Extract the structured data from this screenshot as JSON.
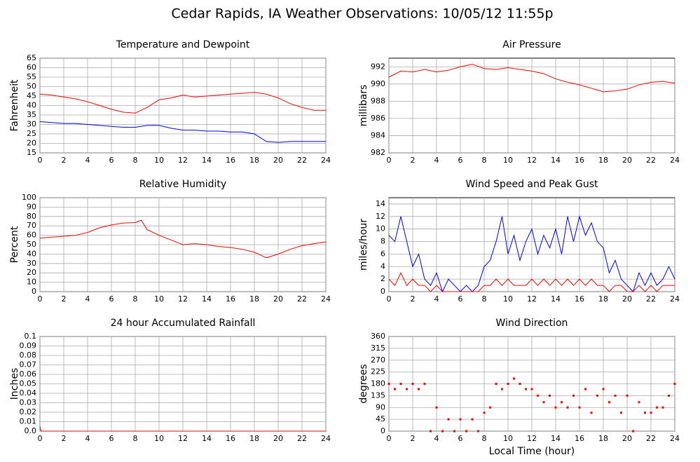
{
  "title": "Cedar Rapids, IA Weather Observations: 10/05/12 11:55p",
  "chart_data": [
    {
      "type": "line",
      "title": "Temperature and Dewpoint",
      "ylabel": "Fahrenheit",
      "grid": true,
      "x": [
        0,
        1,
        2,
        3,
        4,
        5,
        6,
        7,
        8,
        9,
        10,
        11,
        12,
        13,
        14,
        15,
        16,
        17,
        18,
        19,
        20,
        21,
        22,
        23,
        24
      ],
      "xlim": [
        0,
        24
      ],
      "xticks": [
        0,
        2,
        4,
        6,
        8,
        10,
        12,
        14,
        16,
        18,
        20,
        22,
        24
      ],
      "ylim": [
        15,
        65
      ],
      "yticks": [
        15,
        20,
        25,
        30,
        35,
        40,
        45,
        50,
        55,
        60,
        65
      ],
      "series": [
        {
          "color": "#ff0000",
          "values": [
            46,
            45.5,
            44.5,
            43.5,
            42,
            40,
            38,
            36.5,
            36,
            39,
            43,
            44,
            45.5,
            44.5,
            45,
            45.5,
            46,
            46.5,
            47,
            46,
            44,
            41,
            39,
            37.5,
            37.5
          ]
        },
        {
          "color": "#0000ff",
          "values": [
            31.5,
            31,
            30.5,
            30.5,
            30,
            29.5,
            29,
            28.5,
            28.5,
            29.5,
            29.5,
            28,
            27,
            27,
            26.5,
            26.5,
            26,
            26,
            25,
            21,
            20.5,
            21,
            21,
            21,
            21
          ]
        }
      ]
    },
    {
      "type": "line",
      "title": "Air Pressure",
      "ylabel": "millibars",
      "grid": true,
      "x": [
        0,
        1,
        2,
        3,
        4,
        5,
        6,
        7,
        8,
        9,
        10,
        11,
        12,
        13,
        14,
        15,
        16,
        17,
        18,
        19,
        20,
        21,
        22,
        23,
        24
      ],
      "xlim": [
        0,
        24
      ],
      "xticks": [
        0,
        2,
        4,
        6,
        8,
        10,
        12,
        14,
        16,
        18,
        20,
        22,
        24
      ],
      "ylim": [
        982,
        993
      ],
      "yticks": [
        982,
        984,
        986,
        988,
        990,
        992
      ],
      "series": [
        {
          "color": "#ff0000",
          "values": [
            990.8,
            991.5,
            991.4,
            991.7,
            991.4,
            991.6,
            992,
            992.3,
            991.8,
            991.7,
            991.9,
            991.7,
            991.5,
            991.2,
            990.6,
            990.2,
            989.9,
            989.5,
            989.1,
            989.2,
            989.4,
            989.9,
            990.2,
            990.3,
            990.1
          ]
        }
      ]
    },
    {
      "type": "line",
      "title": "Relative Humidity",
      "ylabel": "Percent",
      "grid": true,
      "x": [
        0,
        1,
        2,
        3,
        4,
        5,
        6,
        7,
        8,
        8.5,
        9,
        10,
        11,
        12,
        13,
        14,
        15,
        16,
        17,
        18,
        19,
        20,
        21,
        22,
        23,
        24
      ],
      "xlim": [
        0,
        24
      ],
      "xticks": [
        0,
        2,
        4,
        6,
        8,
        10,
        12,
        14,
        16,
        18,
        20,
        22,
        24
      ],
      "ylim": [
        0,
        100
      ],
      "yticks": [
        0,
        10,
        20,
        30,
        40,
        50,
        60,
        70,
        80,
        90,
        100
      ],
      "series": [
        {
          "color": "#ff0000",
          "values": [
            57,
            58,
            59,
            60,
            63,
            68,
            71,
            73,
            73.5,
            76,
            66,
            60,
            55,
            50,
            51,
            50,
            48,
            47,
            45,
            42,
            36,
            40,
            45,
            49,
            51,
            53
          ]
        }
      ]
    },
    {
      "type": "line",
      "title": "Wind Speed and Peak Gust",
      "ylabel": "miles/hour",
      "grid": true,
      "x": [
        0,
        0.5,
        1,
        1.5,
        2,
        2.5,
        3,
        3.5,
        4,
        4.5,
        5,
        5.5,
        6,
        6.5,
        7,
        7.5,
        8,
        8.5,
        9,
        9.5,
        10,
        10.5,
        11,
        11.5,
        12,
        12.5,
        13,
        13.5,
        14,
        14.5,
        15,
        15.5,
        16,
        16.5,
        17,
        17.5,
        18,
        18.5,
        19,
        19.5,
        20,
        20.5,
        21,
        21.5,
        22,
        22.5,
        23,
        23.5,
        24
      ],
      "xlim": [
        0,
        24
      ],
      "xticks": [
        0,
        2,
        4,
        6,
        8,
        10,
        12,
        14,
        16,
        18,
        20,
        22,
        24
      ],
      "ylim": [
        0,
        15
      ],
      "yticks": [
        0,
        2,
        4,
        6,
        8,
        10,
        12,
        14
      ],
      "series": [
        {
          "color": "#0000ff",
          "values": [
            9,
            8,
            12,
            8,
            4,
            6,
            2,
            1,
            3,
            0,
            2,
            1,
            0,
            1,
            0,
            1,
            4,
            5,
            8,
            12,
            6,
            9,
            5,
            8,
            10,
            6,
            9,
            7,
            10,
            6,
            12,
            8,
            12,
            9,
            11,
            8,
            7,
            3,
            5,
            2,
            1,
            0,
            3,
            1,
            3,
            1,
            2,
            4,
            2
          ]
        },
        {
          "color": "#ff0000",
          "values": [
            2,
            1,
            3,
            1,
            2,
            1,
            1,
            0,
            1,
            0,
            0,
            0,
            0,
            0,
            0,
            0,
            1,
            1,
            2,
            1,
            2,
            1,
            1,
            1,
            2,
            1,
            2,
            1,
            2,
            1,
            2,
            1,
            2,
            1,
            2,
            1,
            1,
            0,
            1,
            1,
            0,
            0,
            1,
            0,
            1,
            0,
            1,
            1,
            1
          ]
        }
      ]
    },
    {
      "type": "line",
      "title": "24 hour Accumulated Rainfall",
      "ylabel": "Inches",
      "grid": true,
      "x": [
        0,
        0.1,
        24
      ],
      "xlim": [
        0,
        24
      ],
      "xticks": [
        0,
        2,
        4,
        6,
        8,
        10,
        12,
        14,
        16,
        18,
        20,
        22,
        24
      ],
      "ylim": [
        0,
        0.1
      ],
      "yticks": [
        {
          "value": 0,
          "label": "0.0"
        },
        0.01,
        0.02,
        0.03,
        0.04,
        0.05,
        0.06,
        0.07,
        0.08,
        0.09,
        0.1
      ],
      "series": [
        {
          "color": "#ff0000",
          "values": [
            0.005,
            0,
            0
          ]
        }
      ]
    },
    {
      "type": "scatter",
      "title": "Wind Direction",
      "ylabel": "degrees",
      "xlabel": "Local Time (hour)",
      "grid": true,
      "x": [
        0,
        0.5,
        1,
        1.5,
        2,
        2.5,
        3,
        3.5,
        4,
        4.5,
        5,
        5.5,
        6,
        6.5,
        7,
        7.5,
        8,
        8.5,
        9,
        9.5,
        10,
        10.5,
        11,
        11.5,
        12,
        12.5,
        13,
        13.5,
        14,
        14.5,
        15,
        15.5,
        16,
        16.5,
        17,
        17.5,
        18,
        18.5,
        19,
        19.5,
        20,
        20.5,
        21,
        21.5,
        22,
        22.5,
        23,
        23.5,
        24
      ],
      "xlim": [
        0,
        24
      ],
      "xticks": [
        0,
        2,
        4,
        6,
        8,
        10,
        12,
        14,
        16,
        18,
        20,
        22,
        24
      ],
      "ylim": [
        0,
        360
      ],
      "yticks": [
        0,
        45,
        90,
        135,
        180,
        225,
        270,
        315,
        360
      ],
      "series": [
        {
          "color": "#ff0000",
          "values": [
            180,
            160,
            180,
            160,
            180,
            160,
            180,
            0,
            90,
            0,
            45,
            0,
            45,
            0,
            45,
            0,
            70,
            90,
            180,
            160,
            180,
            200,
            180,
            160,
            160,
            135,
            110,
            135,
            90,
            110,
            90,
            135,
            90,
            160,
            70,
            135,
            160,
            110,
            135,
            70,
            135,
            0,
            110,
            70,
            70,
            90,
            90,
            135,
            180
          ]
        }
      ]
    }
  ]
}
